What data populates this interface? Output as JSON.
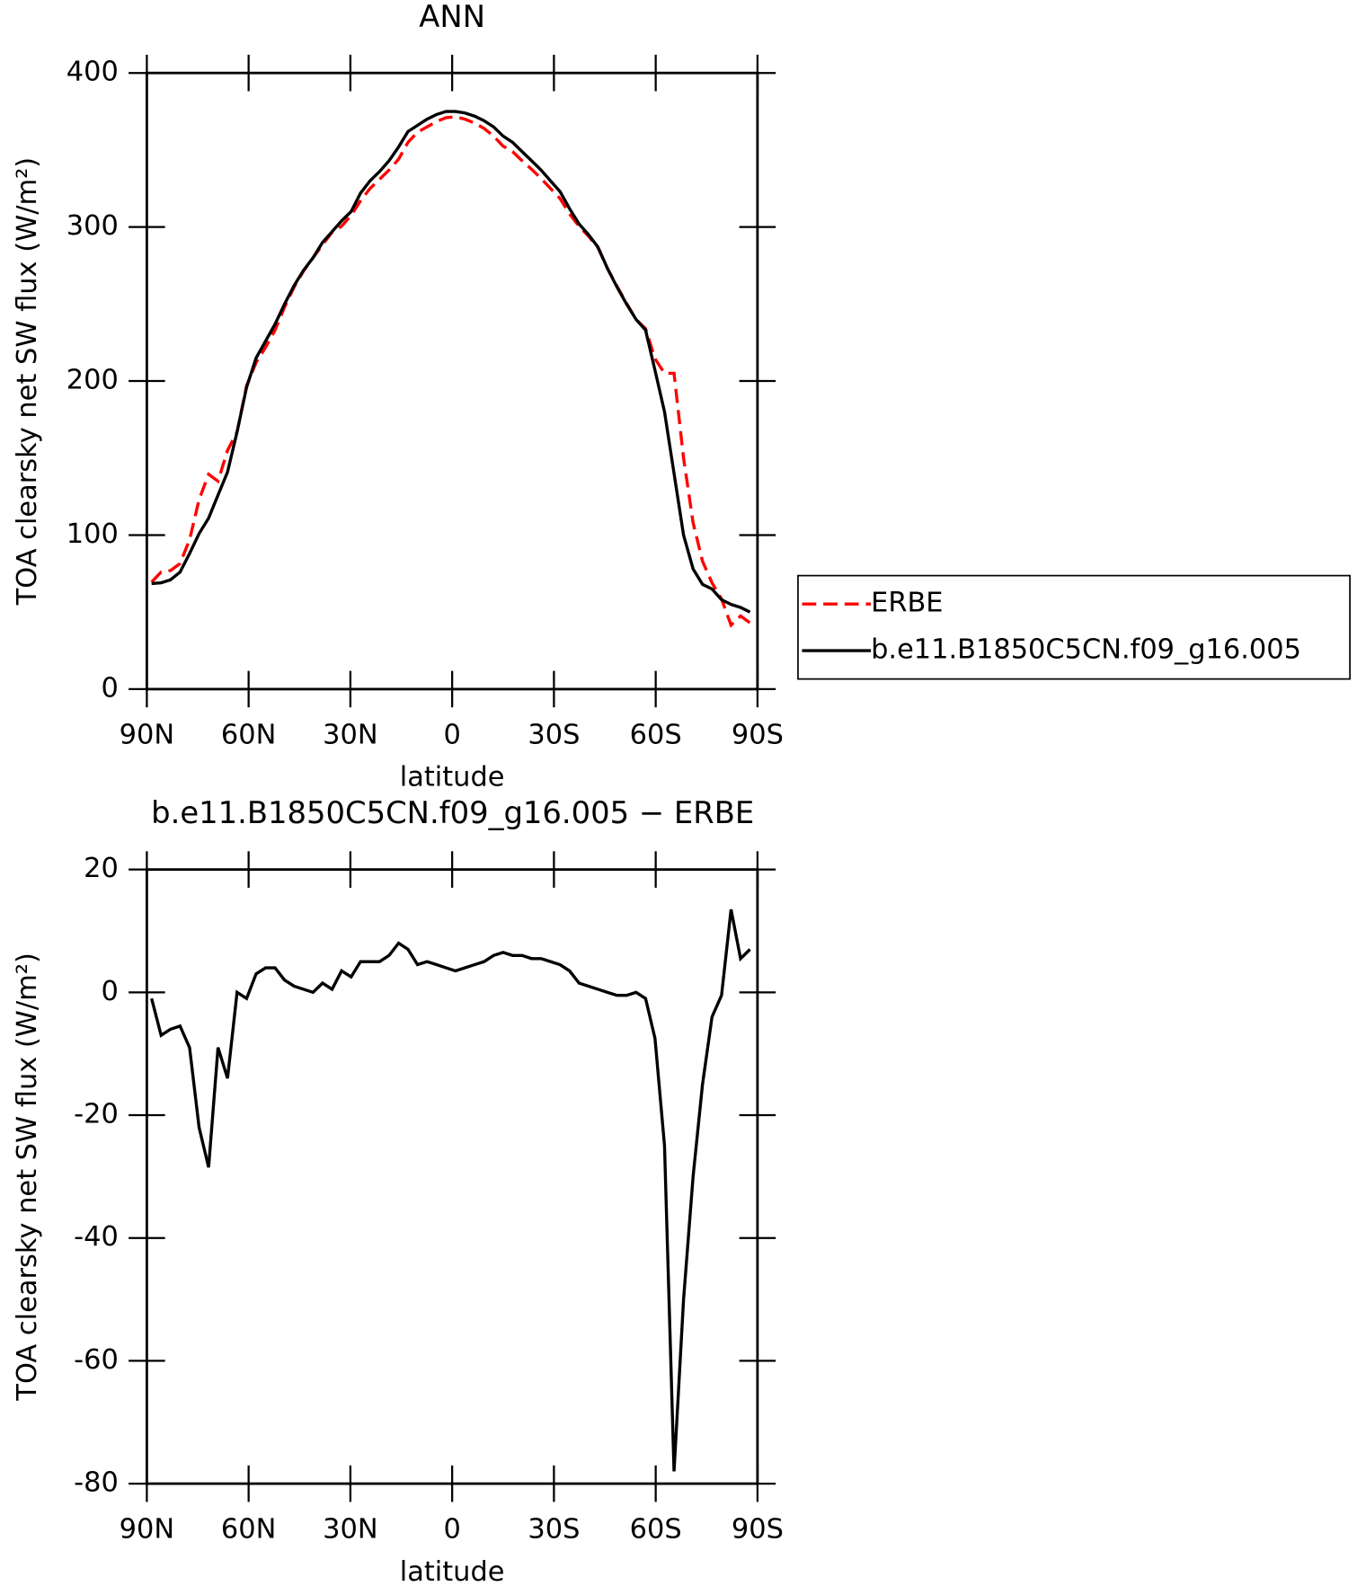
{
  "chart_data": [
    {
      "type": "line",
      "title": "ANN",
      "xlabel": "latitude",
      "ylabel": "TOA clearsky net SW flux (W/m²)",
      "x": [
        88.6,
        85.8,
        83.0,
        80.2,
        77.4,
        74.6,
        71.8,
        69.0,
        66.2,
        63.4,
        60.6,
        57.8,
        55.0,
        52.2,
        49.4,
        46.6,
        43.8,
        41.0,
        38.2,
        35.4,
        32.6,
        29.8,
        27.0,
        24.2,
        21.4,
        18.6,
        15.8,
        13.0,
        10.2,
        7.4,
        4.6,
        1.8,
        -1.0,
        -3.8,
        -6.6,
        -9.4,
        -12.2,
        -15.0,
        -17.8,
        -20.6,
        -23.4,
        -26.2,
        -29.0,
        -31.8,
        -34.6,
        -37.4,
        -40.2,
        -43.0,
        -45.8,
        -48.6,
        -51.4,
        -54.2,
        -57.0,
        -59.8,
        -62.6,
        -65.4,
        -68.2,
        -71.0,
        -73.8,
        -76.6,
        -79.4,
        -82.2,
        -85.0,
        -87.8
      ],
      "series": [
        {
          "name": "ERBE",
          "color": "#ff0000",
          "style": "dashed",
          "values": [
            69.5,
            76,
            77,
            81.5,
            97,
            123,
            139.5,
            135,
            155,
            167,
            197,
            212,
            222,
            233,
            248,
            261,
            271.5,
            280,
            288.5,
            296.5,
            300.5,
            307.5,
            317,
            325,
            331,
            337,
            344,
            355,
            361.5,
            365,
            368.5,
            371,
            371.5,
            370,
            367.5,
            364,
            359,
            352.5,
            349,
            343,
            337.5,
            331.5,
            325,
            318.5,
            308.5,
            300.5,
            294,
            286.5,
            273,
            261.5,
            250.5,
            240,
            234,
            214.5,
            205,
            205,
            150,
            108,
            83,
            69,
            58.5,
            41.5,
            47.5,
            43
          ]
        },
        {
          "name": "b.e11.B1850C5CN.f09_g16.005",
          "color": "#000000",
          "style": "solid",
          "values": [
            68.5,
            69,
            71,
            76,
            88,
            101,
            111,
            126,
            141,
            167,
            196,
            215,
            226,
            237,
            250,
            262,
            272,
            280,
            290,
            297,
            304,
            310,
            322,
            330,
            336,
            343,
            352,
            362,
            366,
            370,
            373,
            375,
            375,
            374,
            372,
            369,
            365,
            359,
            355,
            349,
            343,
            337,
            330,
            323,
            312,
            302,
            295,
            287,
            273,
            261,
            250,
            240,
            233,
            207,
            180,
            140,
            100,
            78,
            68,
            65,
            58,
            55,
            53,
            50
          ]
        }
      ],
      "xlim": [
        90,
        -90
      ],
      "xticks": [
        {
          "value": 90,
          "label": "90N"
        },
        {
          "value": 60,
          "label": "60N"
        },
        {
          "value": 30,
          "label": "30N"
        },
        0,
        {
          "value": -30,
          "label": "30S"
        },
        {
          "value": -60,
          "label": "60S"
        },
        {
          "value": -90,
          "label": "90S"
        }
      ],
      "ylim": [
        0,
        400
      ],
      "yticks": [
        0,
        100,
        200,
        300,
        400
      ],
      "legend": "right-outside"
    },
    {
      "type": "line",
      "title": "b.e11.B1850C5CN.f09_g16.005 − ERBE",
      "xlabel": "latitude",
      "ylabel": "TOA clearsky net SW flux (W/m²)",
      "x": [
        88.6,
        85.8,
        83.0,
        80.2,
        77.4,
        74.6,
        71.8,
        69.0,
        66.2,
        63.4,
        60.6,
        57.8,
        55.0,
        52.2,
        49.4,
        46.6,
        43.8,
        41.0,
        38.2,
        35.4,
        32.6,
        29.8,
        27.0,
        24.2,
        21.4,
        18.6,
        15.8,
        13.0,
        10.2,
        7.4,
        4.6,
        1.8,
        -1.0,
        -3.8,
        -6.6,
        -9.4,
        -12.2,
        -15.0,
        -17.8,
        -20.6,
        -23.4,
        -26.2,
        -29.0,
        -31.8,
        -34.6,
        -37.4,
        -40.2,
        -43.0,
        -45.8,
        -48.6,
        -51.4,
        -54.2,
        -57.0,
        -59.8,
        -62.6,
        -65.4,
        -68.2,
        -71.0,
        -73.8,
        -76.6,
        -79.4,
        -82.2,
        -85.0,
        -87.8
      ],
      "values": [
        -1,
        -7,
        -6,
        -5.5,
        -9,
        -22,
        -28.5,
        -9,
        -14,
        0,
        -1,
        3,
        4,
        4,
        2,
        1,
        0.5,
        0,
        1.5,
        0.5,
        3.5,
        2.5,
        5,
        5,
        5,
        6,
        8,
        7,
        4.5,
        5,
        4.5,
        4,
        3.5,
        4,
        4.5,
        5,
        6,
        6.5,
        6,
        6,
        5.5,
        5.5,
        5,
        4.5,
        3.5,
        1.5,
        1,
        0.5,
        0,
        -0.5,
        -0.5,
        0,
        -1,
        -7.5,
        -25,
        -78,
        -50,
        -30,
        -15,
        -4,
        -0.5,
        13.5,
        5.5,
        7
      ],
      "color": "#000000",
      "xlim": [
        90,
        -90
      ],
      "xticks": [
        {
          "value": 90,
          "label": "90N"
        },
        {
          "value": 60,
          "label": "60N"
        },
        {
          "value": 30,
          "label": "30N"
        },
        0,
        {
          "value": -30,
          "label": "30S"
        },
        {
          "value": -60,
          "label": "60S"
        },
        {
          "value": -90,
          "label": "90S"
        }
      ],
      "ylim": [
        -80,
        20
      ],
      "yticks": [
        -80,
        -60,
        -40,
        -20,
        0,
        20
      ]
    }
  ]
}
